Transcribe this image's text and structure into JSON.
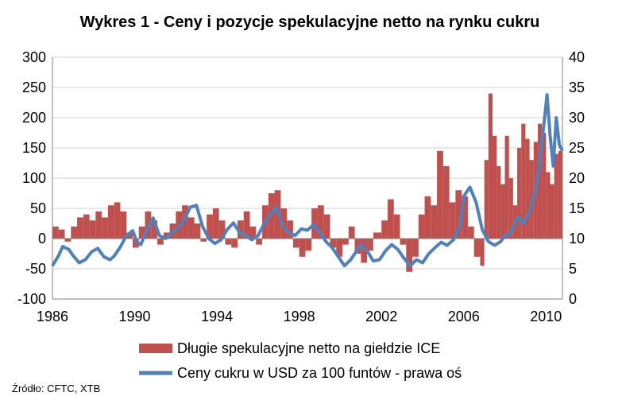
{
  "chart_data": {
    "type": "bar+line",
    "title": "Wykres 1 - Ceny i pozycje spekulacyjne netto na rynku cukru",
    "source": "Źródło: CFTC, XTB",
    "x_ticks": [
      "1986",
      "1990",
      "1994",
      "1998",
      "2002",
      "2006",
      "2010"
    ],
    "x_range": [
      1986,
      2010.8
    ],
    "y_left": {
      "ticks": [
        "300",
        "250",
        "200",
        "150",
        "100",
        "50",
        "0",
        "-50",
        "-100"
      ],
      "range": [
        -100,
        300
      ]
    },
    "y_right": {
      "ticks": [
        "40",
        "35",
        "30",
        "25",
        "20",
        "15",
        "10",
        "5",
        "0"
      ],
      "range": [
        0,
        40
      ]
    },
    "grid": true,
    "legend_position": "bottom",
    "series": [
      {
        "name": "Długie spekulacyjne netto na giełdzie ICE",
        "type": "bar",
        "color": "#c0504d",
        "axis": "left",
        "points": [
          [
            1986.0,
            20
          ],
          [
            1986.3,
            15
          ],
          [
            1986.6,
            -5
          ],
          [
            1986.9,
            20
          ],
          [
            1987.2,
            35
          ],
          [
            1987.5,
            40
          ],
          [
            1987.8,
            30
          ],
          [
            1988.1,
            45
          ],
          [
            1988.4,
            35
          ],
          [
            1988.7,
            55
          ],
          [
            1989.0,
            60
          ],
          [
            1989.3,
            45
          ],
          [
            1989.6,
            10
          ],
          [
            1989.9,
            -15
          ],
          [
            1990.2,
            20
          ],
          [
            1990.5,
            45
          ],
          [
            1990.8,
            30
          ],
          [
            1991.1,
            -10
          ],
          [
            1991.4,
            10
          ],
          [
            1991.7,
            25
          ],
          [
            1992.0,
            45
          ],
          [
            1992.3,
            55
          ],
          [
            1992.6,
            35
          ],
          [
            1992.9,
            25
          ],
          [
            1993.2,
            -5
          ],
          [
            1993.5,
            40
          ],
          [
            1993.8,
            50
          ],
          [
            1994.1,
            30
          ],
          [
            1994.4,
            -10
          ],
          [
            1994.7,
            -15
          ],
          [
            1995.0,
            30
          ],
          [
            1995.3,
            45
          ],
          [
            1995.6,
            20
          ],
          [
            1995.9,
            -10
          ],
          [
            1996.2,
            55
          ],
          [
            1996.5,
            75
          ],
          [
            1996.8,
            80
          ],
          [
            1997.1,
            50
          ],
          [
            1997.4,
            30
          ],
          [
            1997.7,
            -15
          ],
          [
            1998.0,
            -30
          ],
          [
            1998.3,
            -20
          ],
          [
            1998.6,
            50
          ],
          [
            1998.9,
            55
          ],
          [
            1999.2,
            40
          ],
          [
            1999.5,
            -15
          ],
          [
            1999.8,
            -30
          ],
          [
            2000.1,
            -10
          ],
          [
            2000.4,
            20
          ],
          [
            2000.7,
            -25
          ],
          [
            2001.0,
            -40
          ],
          [
            2001.3,
            -20
          ],
          [
            2001.6,
            10
          ],
          [
            2002.0,
            30
          ],
          [
            2002.3,
            65
          ],
          [
            2002.6,
            40
          ],
          [
            2002.9,
            -10
          ],
          [
            2003.2,
            -55
          ],
          [
            2003.5,
            -30
          ],
          [
            2003.8,
            40
          ],
          [
            2004.1,
            70
          ],
          [
            2004.4,
            55
          ],
          [
            2004.7,
            145
          ],
          [
            2005.0,
            120
          ],
          [
            2005.3,
            60
          ],
          [
            2005.6,
            80
          ],
          [
            2005.9,
            70
          ],
          [
            2006.2,
            20
          ],
          [
            2006.5,
            -30
          ],
          [
            2006.8,
            -45
          ],
          [
            2007.0,
            130
          ],
          [
            2007.2,
            240
          ],
          [
            2007.4,
            170
          ],
          [
            2007.6,
            120
          ],
          [
            2007.8,
            90
          ],
          [
            2008.0,
            170
          ],
          [
            2008.2,
            100
          ],
          [
            2008.4,
            55
          ],
          [
            2008.6,
            150
          ],
          [
            2008.8,
            190
          ],
          [
            2009.0,
            165
          ],
          [
            2009.2,
            130
          ],
          [
            2009.4,
            160
          ],
          [
            2009.6,
            190
          ],
          [
            2009.8,
            175
          ],
          [
            2010.0,
            110
          ],
          [
            2010.2,
            90
          ],
          [
            2010.4,
            140
          ],
          [
            2010.6,
            145
          ]
        ]
      },
      {
        "name": "Ceny cukru w USD za 100 funtów - prawa oś",
        "type": "line",
        "color": "#4f81bd",
        "axis": "right",
        "points": [
          [
            1986.0,
            5.5
          ],
          [
            1986.3,
            7.2
          ],
          [
            1986.5,
            8.7
          ],
          [
            1986.8,
            8.2
          ],
          [
            1987.0,
            7.2
          ],
          [
            1987.3,
            6.0
          ],
          [
            1987.6,
            6.5
          ],
          [
            1987.9,
            7.8
          ],
          [
            1988.2,
            8.4
          ],
          [
            1988.5,
            7.0
          ],
          [
            1988.8,
            6.5
          ],
          [
            1989.0,
            7.1
          ],
          [
            1989.3,
            8.6
          ],
          [
            1989.6,
            10.5
          ],
          [
            1989.9,
            11.3
          ],
          [
            1990.1,
            9.5
          ],
          [
            1990.3,
            9.0
          ],
          [
            1990.6,
            11.5
          ],
          [
            1990.9,
            13.4
          ],
          [
            1991.2,
            10.5
          ],
          [
            1991.5,
            10.0
          ],
          [
            1991.8,
            11.0
          ],
          [
            1992.1,
            11.7
          ],
          [
            1992.4,
            13.0
          ],
          [
            1992.7,
            15.2
          ],
          [
            1993.0,
            15.5
          ],
          [
            1993.3,
            12.0
          ],
          [
            1993.6,
            10.0
          ],
          [
            1993.9,
            9.2
          ],
          [
            1994.2,
            9.8
          ],
          [
            1994.5,
            11.5
          ],
          [
            1994.8,
            12.6
          ],
          [
            1995.1,
            11.0
          ],
          [
            1995.4,
            10.5
          ],
          [
            1995.7,
            9.8
          ],
          [
            1996.0,
            10.5
          ],
          [
            1996.3,
            12.5
          ],
          [
            1996.6,
            14.0
          ],
          [
            1996.9,
            15.2
          ],
          [
            1997.2,
            12.0
          ],
          [
            1997.5,
            11.0
          ],
          [
            1997.8,
            10.5
          ],
          [
            1998.1,
            11.6
          ],
          [
            1998.4,
            11.4
          ],
          [
            1998.7,
            12.3
          ],
          [
            1999.0,
            11.0
          ],
          [
            1999.3,
            9.5
          ],
          [
            1999.6,
            8.5
          ],
          [
            1999.9,
            7.0
          ],
          [
            2000.2,
            5.5
          ],
          [
            2000.5,
            6.5
          ],
          [
            2000.8,
            8.0
          ],
          [
            2001.0,
            9.0
          ],
          [
            2001.3,
            8.0
          ],
          [
            2001.6,
            6.3
          ],
          [
            2001.9,
            6.5
          ],
          [
            2002.2,
            8.0
          ],
          [
            2002.5,
            9.0
          ],
          [
            2002.8,
            8.2
          ],
          [
            2003.1,
            6.7
          ],
          [
            2003.4,
            5.5
          ],
          [
            2003.7,
            6.5
          ],
          [
            2004.0,
            6.0
          ],
          [
            2004.3,
            7.5
          ],
          [
            2004.6,
            8.5
          ],
          [
            2004.9,
            9.4
          ],
          [
            2005.2,
            8.9
          ],
          [
            2005.5,
            9.8
          ],
          [
            2005.8,
            12.0
          ],
          [
            2006.0,
            17.0
          ],
          [
            2006.3,
            18.5
          ],
          [
            2006.6,
            16.0
          ],
          [
            2006.9,
            11.5
          ],
          [
            2007.2,
            9.5
          ],
          [
            2007.5,
            8.9
          ],
          [
            2007.8,
            9.5
          ],
          [
            2008.0,
            10.5
          ],
          [
            2008.3,
            11.0
          ],
          [
            2008.6,
            13.6
          ],
          [
            2008.9,
            12.5
          ],
          [
            2009.2,
            14.5
          ],
          [
            2009.5,
            18.0
          ],
          [
            2009.7,
            23.0
          ],
          [
            2009.9,
            29.0
          ],
          [
            2010.05,
            33.8
          ],
          [
            2010.2,
            27.0
          ],
          [
            2010.35,
            22.0
          ],
          [
            2010.5,
            30.0
          ],
          [
            2010.65,
            25.5
          ],
          [
            2010.8,
            24.5
          ]
        ]
      }
    ]
  }
}
